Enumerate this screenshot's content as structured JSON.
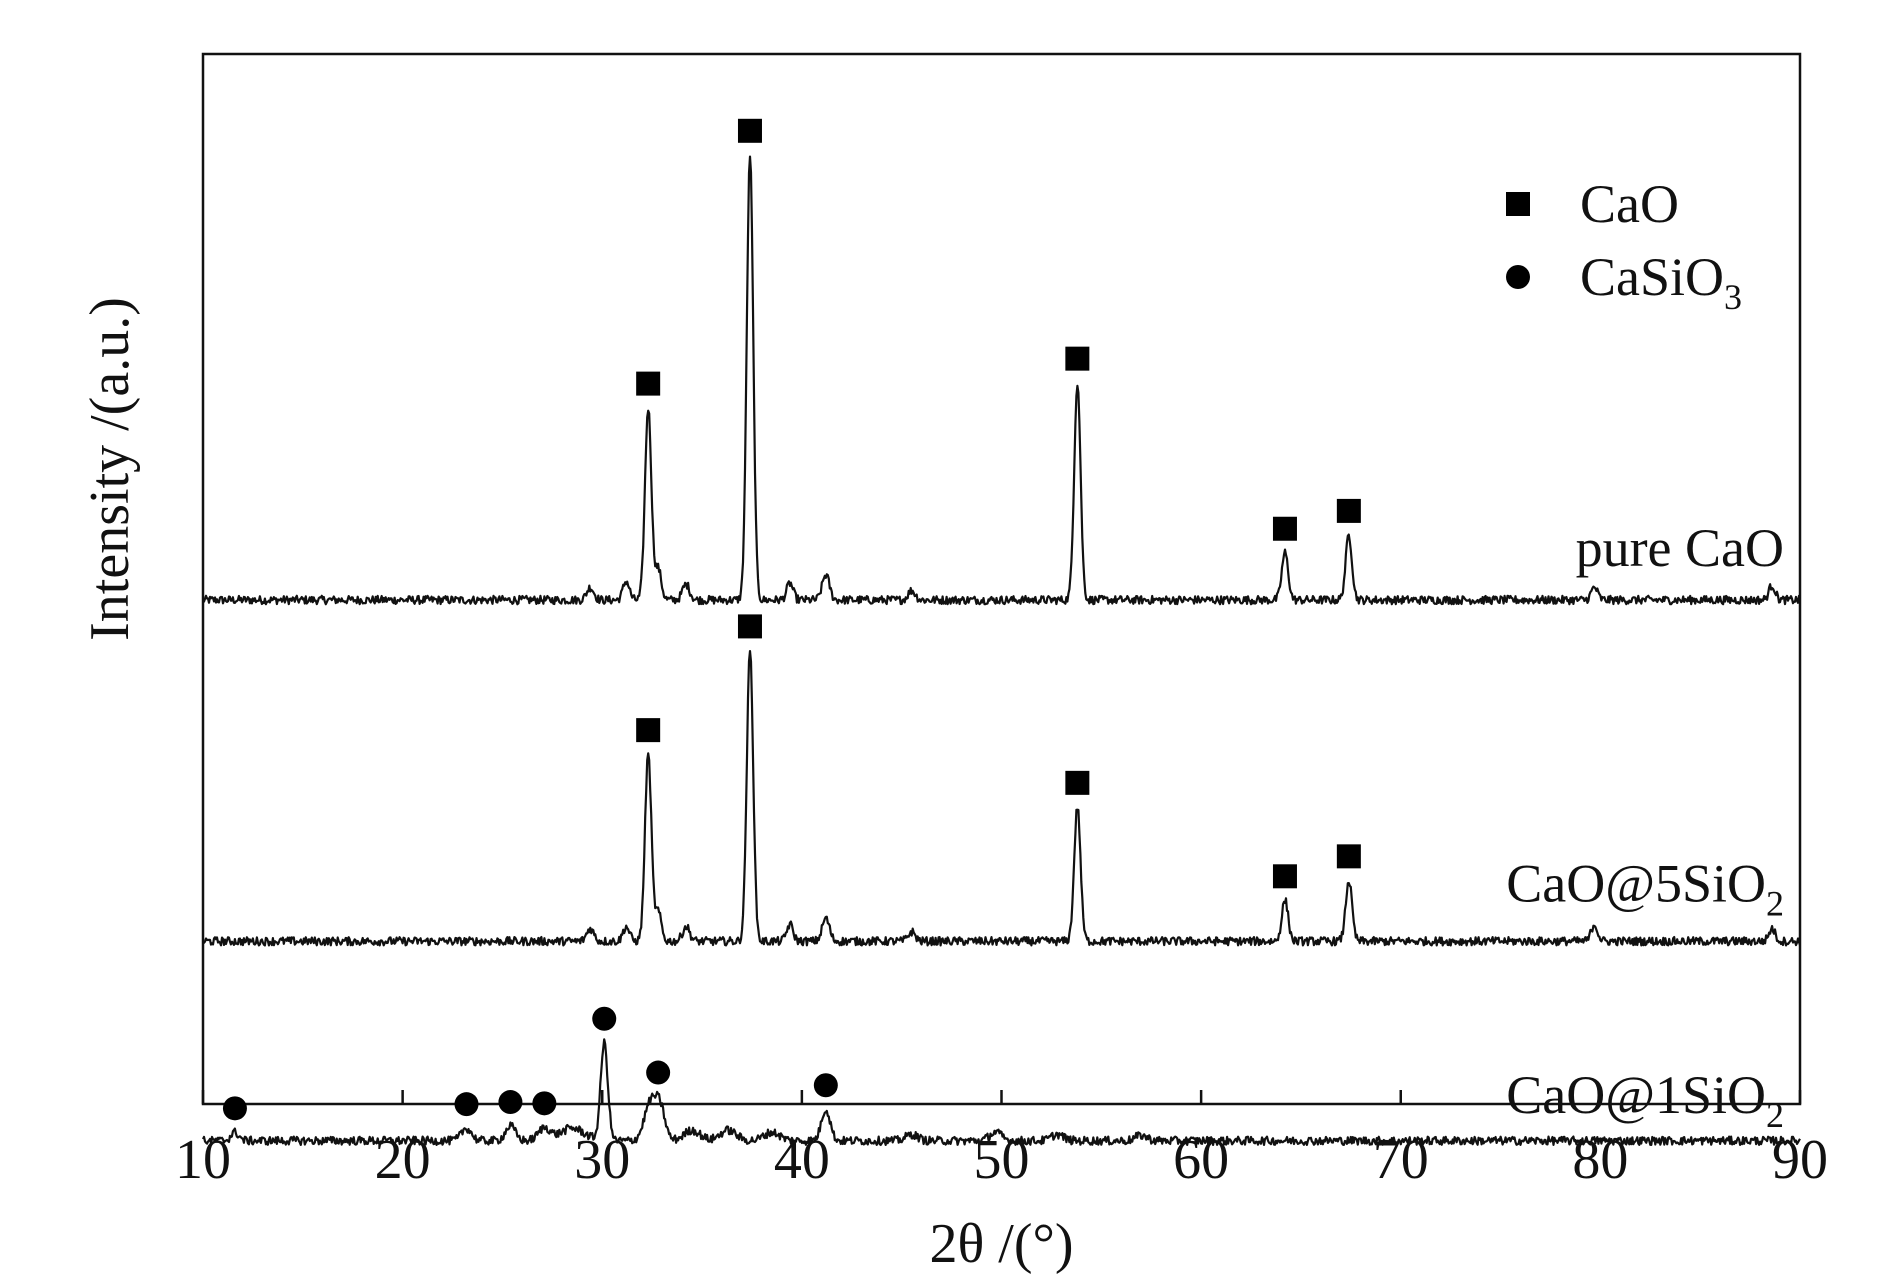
{
  "chart_data": {
    "type": "line",
    "title": "",
    "xlabel": "2θ /(°)",
    "ylabel": "Intensity /(a.u.)",
    "xlim": [
      10,
      90
    ],
    "xticks": [
      "10",
      "20",
      "30",
      "40",
      "50",
      "60",
      "70",
      "80",
      "90"
    ],
    "yticks": [],
    "grid": false,
    "legend_placement": "top-right",
    "legend": [
      {
        "marker": "square",
        "label": "CaO"
      },
      {
        "marker": "circle",
        "label": "CaSiO3"
      }
    ],
    "series": [
      {
        "name": "pure CaO",
        "baseline": 0.52,
        "scale": 1.0,
        "peaks": [
          {
            "x": 29.4,
            "h": 0.012,
            "w": 0.18
          },
          {
            "x": 31.2,
            "h": 0.018,
            "w": 0.16
          },
          {
            "x": 32.3,
            "h": 0.183,
            "w": 0.16
          },
          {
            "x": 32.8,
            "h": 0.03,
            "w": 0.16
          },
          {
            "x": 34.2,
            "h": 0.015,
            "w": 0.18
          },
          {
            "x": 37.4,
            "h": 0.424,
            "w": 0.16
          },
          {
            "x": 39.4,
            "h": 0.016,
            "w": 0.16
          },
          {
            "x": 41.2,
            "h": 0.024,
            "w": 0.18
          },
          {
            "x": 45.5,
            "h": 0.009,
            "w": 0.18
          },
          {
            "x": 53.8,
            "h": 0.207,
            "w": 0.16
          },
          {
            "x": 64.2,
            "h": 0.045,
            "w": 0.16
          },
          {
            "x": 67.4,
            "h": 0.062,
            "w": 0.16
          },
          {
            "x": 79.7,
            "h": 0.012,
            "w": 0.16
          },
          {
            "x": 88.6,
            "h": 0.014,
            "w": 0.16
          }
        ],
        "markers": [
          {
            "x": 32.3,
            "type": "square"
          },
          {
            "x": 37.4,
            "type": "square"
          },
          {
            "x": 53.8,
            "type": "square"
          },
          {
            "x": 64.2,
            "type": "square"
          },
          {
            "x": 67.4,
            "type": "square"
          }
        ]
      },
      {
        "name": "CaO@5SiO2",
        "baseline": 0.845,
        "scale": 1.0,
        "peaks": [
          {
            "x": 29.4,
            "h": 0.012,
            "w": 0.18
          },
          {
            "x": 31.2,
            "h": 0.014,
            "w": 0.16
          },
          {
            "x": 32.3,
            "h": 0.178,
            "w": 0.16
          },
          {
            "x": 32.8,
            "h": 0.028,
            "w": 0.16
          },
          {
            "x": 34.2,
            "h": 0.014,
            "w": 0.18
          },
          {
            "x": 37.4,
            "h": 0.277,
            "w": 0.16
          },
          {
            "x": 39.4,
            "h": 0.016,
            "w": 0.16
          },
          {
            "x": 41.2,
            "h": 0.022,
            "w": 0.18
          },
          {
            "x": 45.5,
            "h": 0.009,
            "w": 0.18
          },
          {
            "x": 53.8,
            "h": 0.128,
            "w": 0.16
          },
          {
            "x": 64.2,
            "h": 0.039,
            "w": 0.16
          },
          {
            "x": 67.4,
            "h": 0.058,
            "w": 0.16
          },
          {
            "x": 79.7,
            "h": 0.016,
            "w": 0.16
          },
          {
            "x": 88.6,
            "h": 0.012,
            "w": 0.16
          }
        ],
        "markers": [
          {
            "x": 32.3,
            "type": "square"
          },
          {
            "x": 37.4,
            "type": "square"
          },
          {
            "x": 53.8,
            "type": "square"
          },
          {
            "x": 64.2,
            "type": "square"
          },
          {
            "x": 67.4,
            "type": "square"
          }
        ]
      },
      {
        "name": "CaO@1SiO2",
        "baseline": 1.035,
        "scale": 1.0,
        "peaks": [
          {
            "x": 11.6,
            "h": 0.008,
            "w": 0.2
          },
          {
            "x": 23.2,
            "h": 0.012,
            "w": 0.25
          },
          {
            "x": 25.4,
            "h": 0.014,
            "w": 0.25
          },
          {
            "x": 27.1,
            "h": 0.012,
            "w": 0.3
          },
          {
            "x": 28.5,
            "h": 0.012,
            "w": 0.6
          },
          {
            "x": 30.1,
            "h": 0.093,
            "w": 0.18
          },
          {
            "x": 32.4,
            "h": 0.035,
            "w": 0.3
          },
          {
            "x": 32.9,
            "h": 0.03,
            "w": 0.25
          },
          {
            "x": 34.5,
            "h": 0.01,
            "w": 0.4
          },
          {
            "x": 36.3,
            "h": 0.01,
            "w": 0.4
          },
          {
            "x": 38.5,
            "h": 0.008,
            "w": 0.4
          },
          {
            "x": 41.2,
            "h": 0.03,
            "w": 0.22
          },
          {
            "x": 45.5,
            "h": 0.006,
            "w": 0.3
          },
          {
            "x": 49.7,
            "h": 0.008,
            "w": 0.3
          },
          {
            "x": 52.8,
            "h": 0.006,
            "w": 0.3
          },
          {
            "x": 57.0,
            "h": 0.005,
            "w": 0.3
          }
        ],
        "markers": [
          {
            "x": 11.6,
            "type": "circle"
          },
          {
            "x": 23.2,
            "type": "circle"
          },
          {
            "x": 25.4,
            "type": "circle"
          },
          {
            "x": 27.1,
            "type": "circle"
          },
          {
            "x": 30.1,
            "type": "circle"
          },
          {
            "x": 32.8,
            "type": "circle"
          },
          {
            "x": 41.2,
            "type": "circle"
          }
        ]
      }
    ],
    "series_labels": [
      {
        "text": "pure CaO",
        "sub": ""
      },
      {
        "text": "CaO@5SiO",
        "sub": "2"
      },
      {
        "text": "CaO@1SiO",
        "sub": "2"
      }
    ],
    "legend_labels": [
      {
        "text": "CaO",
        "sub": ""
      },
      {
        "text": "CaSiO",
        "sub": "3"
      }
    ],
    "colors": {
      "line": "#111111",
      "marker": "#000000",
      "frame": "#111111"
    }
  }
}
